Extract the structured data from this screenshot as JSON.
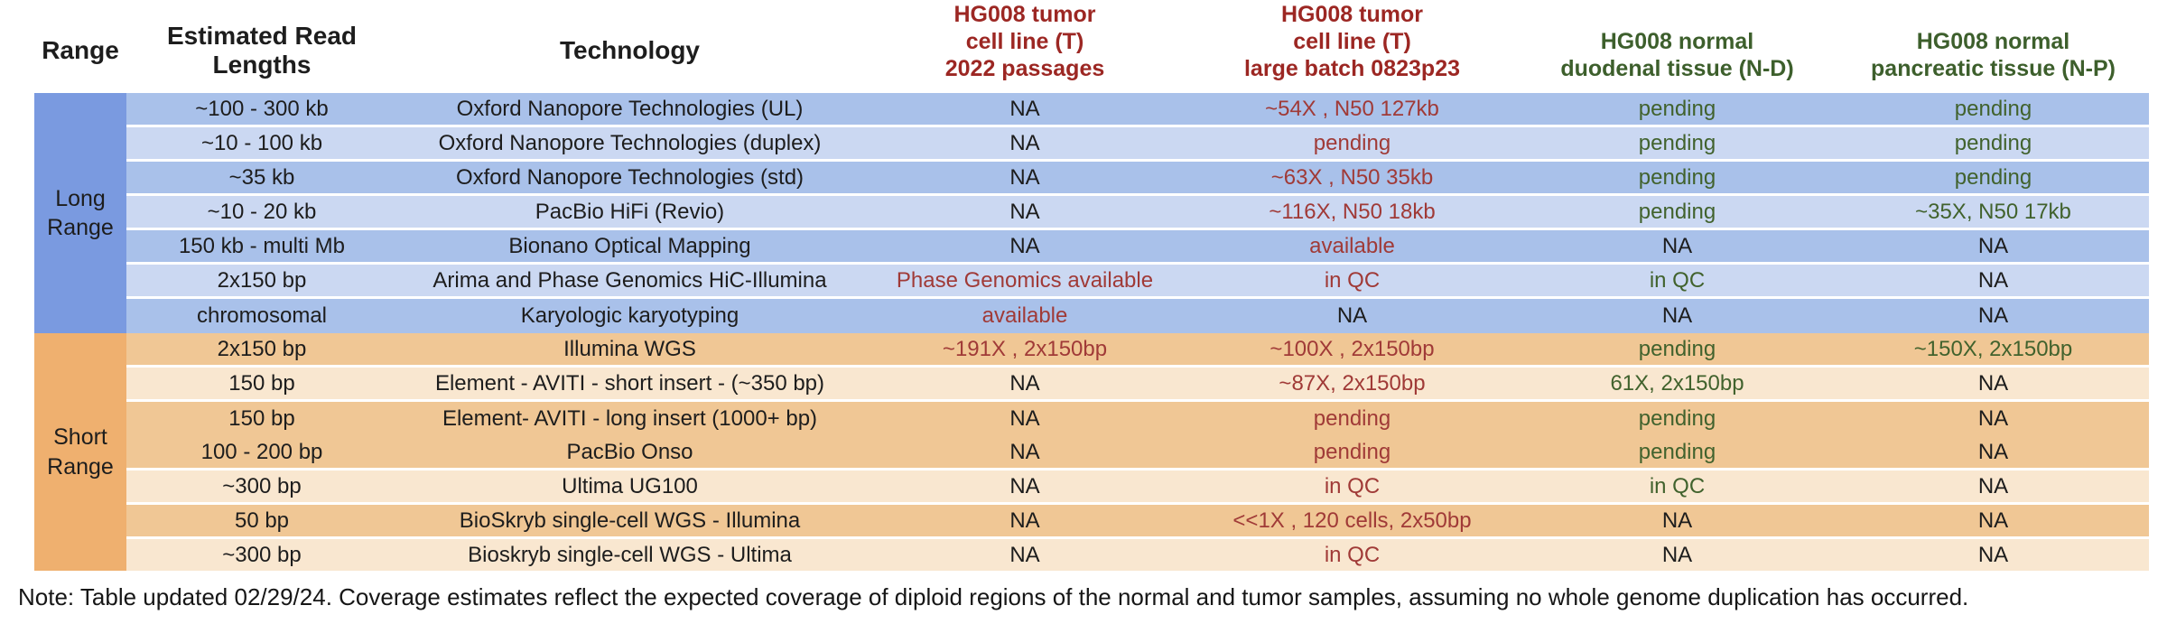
{
  "colors": {
    "header_red": "#9c2723",
    "header_green": "#3d5f2c",
    "cell_red": "#a03a37",
    "cell_green": "#41622d",
    "text_black": "#1d1d1d",
    "long_label_bg": "#7a9ae0",
    "long_row_dark": "#a9c1ea",
    "long_row_light": "#cbd8f2",
    "short_label_bg": "#efb06f",
    "short_row_dark": "#f0c795",
    "short_row_light": "#f9e7d0"
  },
  "table": {
    "columns": [
      {
        "label": "Range"
      },
      {
        "label": "Estimated Read\nLengths"
      },
      {
        "label": "Technology"
      },
      {
        "label": "HG008 tumor\ncell line (T)\n2022 passages"
      },
      {
        "label": "HG008 tumor\ncell line (T)\nlarge batch 0823p23"
      },
      {
        "label": "HG008 normal\nduodenal tissue (N-D)"
      },
      {
        "label": "HG008 normal\npancreatic tissue (N-P)"
      }
    ],
    "value_column_ids": [
      "t-2022-passages",
      "t-large-batch-0823p23",
      "n-duodenal",
      "n-pancreatic"
    ],
    "sections": [
      {
        "label": "Long Range",
        "theme": "long",
        "rows": [
          {
            "shade": "dark",
            "read_length": "~100 - 300 kb",
            "technology": "Oxford Nanopore Technologies (UL)",
            "values": [
              {
                "text": "NA",
                "color": "black"
              },
              {
                "text": "~54X , N50 127kb",
                "color": "red"
              },
              {
                "text": "pending",
                "color": "green"
              },
              {
                "text": "pending",
                "color": "green"
              }
            ]
          },
          {
            "shade": "light",
            "read_length": "~10 - 100 kb",
            "technology": "Oxford Nanopore Technologies (duplex)",
            "values": [
              {
                "text": "NA",
                "color": "black"
              },
              {
                "text": "pending",
                "color": "red"
              },
              {
                "text": "pending",
                "color": "green"
              },
              {
                "text": "pending",
                "color": "green"
              }
            ]
          },
          {
            "shade": "dark",
            "read_length": "~35 kb",
            "technology": "Oxford Nanopore Technologies (std)",
            "values": [
              {
                "text": "NA",
                "color": "black"
              },
              {
                "text": "~63X , N50 35kb",
                "color": "red"
              },
              {
                "text": "pending",
                "color": "green"
              },
              {
                "text": "pending",
                "color": "green"
              }
            ]
          },
          {
            "shade": "light",
            "read_length": "~10 - 20 kb",
            "technology": "PacBio HiFi (Revio)",
            "values": [
              {
                "text": "NA",
                "color": "black"
              },
              {
                "text": "~116X, N50 18kb",
                "color": "red"
              },
              {
                "text": "pending",
                "color": "green"
              },
              {
                "text": "~35X, N50 17kb",
                "color": "green"
              }
            ]
          },
          {
            "shade": "dark",
            "read_length": "150 kb - multi Mb",
            "technology": "Bionano Optical Mapping",
            "values": [
              {
                "text": "NA",
                "color": "black"
              },
              {
                "text": "available",
                "color": "red"
              },
              {
                "text": "NA",
                "color": "black"
              },
              {
                "text": "NA",
                "color": "black"
              }
            ]
          },
          {
            "shade": "light",
            "read_length": "2x150 bp",
            "technology": "Arima and Phase Genomics HiC-Illumina",
            "values": [
              {
                "text": "Phase Genomics available",
                "color": "red"
              },
              {
                "text": "in QC",
                "color": "red"
              },
              {
                "text": "in QC",
                "color": "green"
              },
              {
                "text": "NA",
                "color": "black"
              }
            ]
          },
          {
            "shade": "dark",
            "gap_below": false,
            "read_length": "chromosomal",
            "technology": "Karyologic karyotyping",
            "values": [
              {
                "text": "available",
                "color": "red"
              },
              {
                "text": "NA",
                "color": "black"
              },
              {
                "text": "NA",
                "color": "black"
              },
              {
                "text": "NA",
                "color": "black"
              }
            ]
          }
        ]
      },
      {
        "label": "Short Range",
        "theme": "short",
        "rows": [
          {
            "shade": "dark",
            "read_length": "2x150 bp",
            "technology": "Illumina WGS",
            "values": [
              {
                "text": "~191X , 2x150bp",
                "color": "red"
              },
              {
                "text": "~100X , 2x150bp",
                "color": "red"
              },
              {
                "text": "pending",
                "color": "green"
              },
              {
                "text": "~150X, 2x150bp",
                "color": "green"
              }
            ]
          },
          {
            "shade": "light",
            "read_length": "150 bp",
            "technology": "Element - AVITI - short insert - (~350 bp)",
            "values": [
              {
                "text": "NA",
                "color": "black"
              },
              {
                "text": "~87X, 2x150bp",
                "color": "red"
              },
              {
                "text": "61X, 2x150bp",
                "color": "green"
              },
              {
                "text": "NA",
                "color": "black"
              }
            ]
          },
          {
            "shade": "dark",
            "gap_below": false,
            "read_length": "150 bp",
            "technology": "Element- AVITI - long insert (1000+ bp)",
            "values": [
              {
                "text": "NA",
                "color": "black"
              },
              {
                "text": "pending",
                "color": "red"
              },
              {
                "text": "pending",
                "color": "green"
              },
              {
                "text": "NA",
                "color": "black"
              }
            ]
          },
          {
            "shade": "dark",
            "read_length": "100 - 200 bp",
            "technology": "PacBio Onso",
            "values": [
              {
                "text": "NA",
                "color": "black"
              },
              {
                "text": "pending",
                "color": "red"
              },
              {
                "text": "pending",
                "color": "green"
              },
              {
                "text": "NA",
                "color": "black"
              }
            ]
          },
          {
            "shade": "light",
            "read_length": "~300 bp",
            "technology": "Ultima UG100",
            "values": [
              {
                "text": "NA",
                "color": "black"
              },
              {
                "text": "in QC",
                "color": "red"
              },
              {
                "text": "in QC",
                "color": "green"
              },
              {
                "text": "NA",
                "color": "black"
              }
            ]
          },
          {
            "shade": "dark",
            "read_length": "50 bp",
            "technology": "BioSkryb single-cell WGS - Illumina",
            "values": [
              {
                "text": "NA",
                "color": "black"
              },
              {
                "text": "<<1X , 120 cells, 2x50bp",
                "color": "red"
              },
              {
                "text": "NA",
                "color": "black"
              },
              {
                "text": "NA",
                "color": "black"
              }
            ]
          },
          {
            "shade": "light",
            "read_length": "~300 bp",
            "technology": "Bioskryb single-cell WGS - Ultima",
            "values": [
              {
                "text": "NA",
                "color": "black"
              },
              {
                "text": "in QC",
                "color": "red"
              },
              {
                "text": "NA",
                "color": "black"
              },
              {
                "text": "NA",
                "color": "black"
              }
            ]
          }
        ]
      }
    ]
  },
  "note": "Note: Table updated 02/29/24. Coverage estimates reflect the expected coverage of diploid regions of the normal and tumor samples, assuming no whole genome duplication has occurred."
}
